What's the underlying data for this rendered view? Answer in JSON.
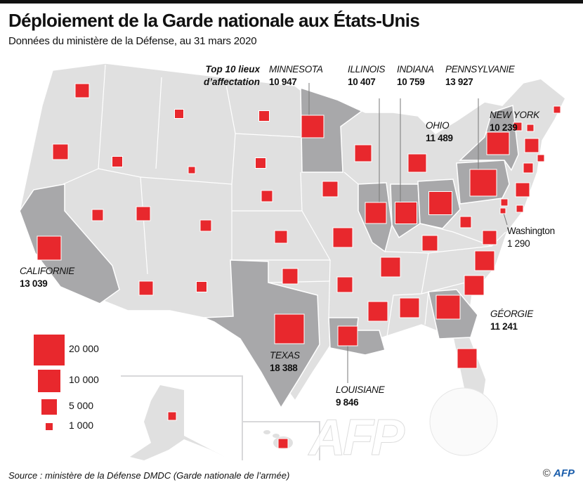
{
  "header": {
    "title": "Déploiement de la Garde nationale aux États-Unis",
    "subtitle": "Données du ministère de la Défense, au 31 mars  2020"
  },
  "top10_label": "Top 10 lieux d’affectation",
  "colors": {
    "square": "#e8282d",
    "land": "#e0e0e0",
    "highlight": "#a8a8aa",
    "border": "#ffffff"
  },
  "states": [
    {
      "name": "MINNESOTA",
      "value": "10 947"
    },
    {
      "name": "ILLINOIS",
      "value": "10 407"
    },
    {
      "name": "INDIANA",
      "value": "10 759"
    },
    {
      "name": "PENNSYLVANIE",
      "value": "13 927"
    },
    {
      "name": "NEW YORK",
      "value": "10 239"
    },
    {
      "name": "OHIO",
      "value": "11 489"
    },
    {
      "name": "Washington",
      "value": "1 290"
    },
    {
      "name": "CALIFORNIE",
      "value": "13 039"
    },
    {
      "name": "GÉORGIE",
      "value": "11 241"
    },
    {
      "name": "TEXAS",
      "value": "18 388"
    },
    {
      "name": "LOUISIANE",
      "value": "9 846"
    }
  ],
  "legend": [
    {
      "value": 20000,
      "label": "20 000"
    },
    {
      "value": 10000,
      "label": "10 000"
    },
    {
      "value": 5000,
      "label": "5 000"
    },
    {
      "value": 1000,
      "label": "1 000"
    }
  ],
  "source": "Source : ministère de la Défense DMDC (Garde nationale de l’armée)",
  "credit": {
    "symbol": "©",
    "brand": "AFP"
  },
  "watermark": "AFP"
}
